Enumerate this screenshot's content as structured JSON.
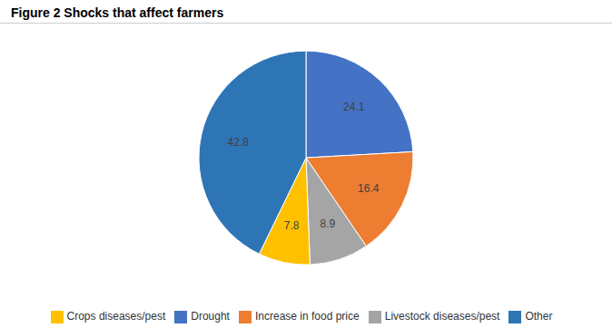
{
  "chart_data": {
    "type": "pie",
    "title": "Figure 2 Shocks that affect farmers",
    "categories": [
      "Drought",
      "Increase in food price",
      "Livestock diseases/pest",
      "Crops diseases/pest",
      "Other"
    ],
    "values": [
      24.1,
      16.4,
      8.9,
      7.8,
      42.8
    ],
    "colors": [
      "#4472C4",
      "#ED7D31",
      "#A5A5A5",
      "#FFC000",
      "#2E75B6"
    ],
    "data_labels": true,
    "legend": "bottom"
  }
}
